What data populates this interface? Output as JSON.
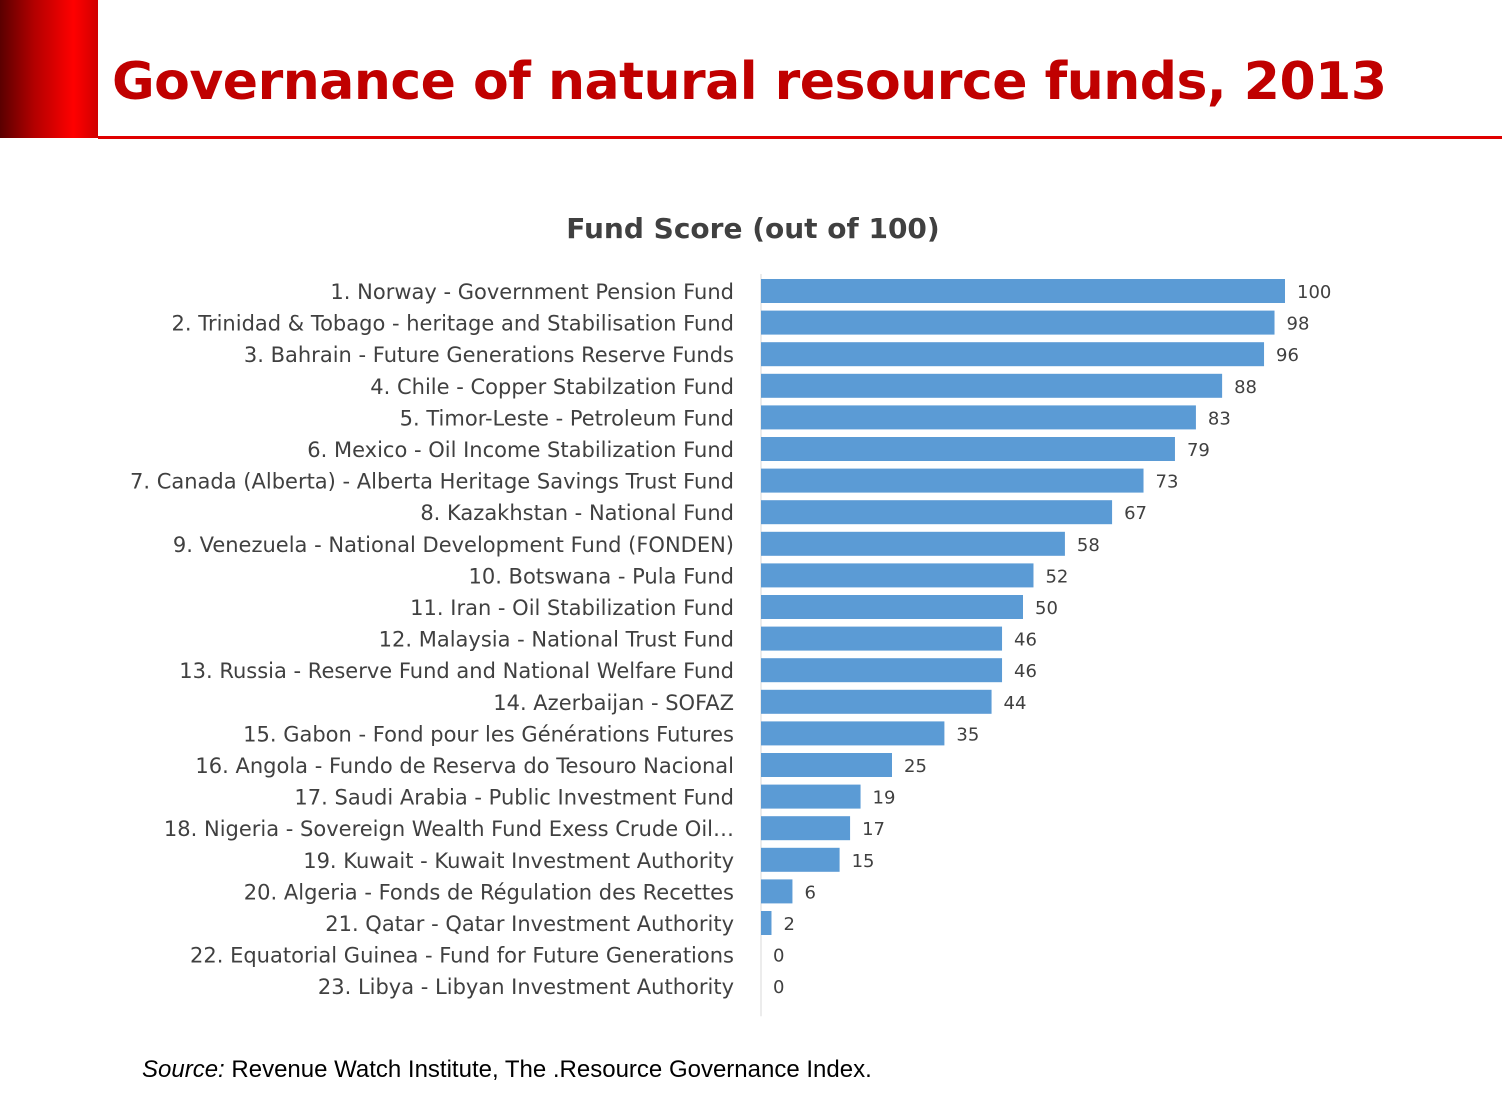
{
  "slide": {
    "title": "Governance of natural resource funds, 2013"
  },
  "colors": {
    "accent": "#c00000",
    "bar": "#5b9bd5",
    "text": "#404040"
  },
  "source": {
    "label": "Source:",
    "text": " Revenue Watch Institute, The .Resource Governance Index."
  },
  "chart_data": {
    "type": "bar",
    "orientation": "horizontal",
    "title": "Fund Score (out of 100)",
    "xlabel": "",
    "ylabel": "",
    "xlim": [
      0,
      100
    ],
    "grid": false,
    "legend": "none",
    "categories": [
      "1. Norway - Government Pension Fund",
      "2. Trinidad & Tobago - heritage and Stabilisation Fund",
      "3. Bahrain - Future Generations Reserve Funds",
      "4. Chile - Copper Stabilzation Fund",
      "5. Timor-Leste - Petroleum Fund",
      "6. Mexico - Oil Income Stabilization Fund",
      "7. Canada (Alberta) - Alberta Heritage Savings Trust Fund",
      "8. Kazakhstan - National Fund",
      "9. Venezuela - National Development Fund (FONDEN)",
      "10. Botswana - Pula Fund",
      "11. Iran - Oil Stabilization Fund",
      "12. Malaysia - National Trust Fund",
      "13. Russia - Reserve Fund and National Welfare Fund",
      "14. Azerbaijan - SOFAZ",
      "15. Gabon - Fond pour les Générations Futures",
      "16. Angola - Fundo de Reserva do Tesouro Nacional",
      "17. Saudi Arabia - Public Investment Fund",
      "18. Nigeria - Sovereign Wealth Fund Exess Crude Oil…",
      "19. Kuwait - Kuwait Investment Authority",
      "20. Algeria - Fonds de Régulation des Recettes",
      "21. Qatar - Qatar Investment Authority",
      "22. Equatorial Guinea - Fund for Future Generations",
      "23. Libya - Libyan Investment Authority"
    ],
    "values": [
      100,
      98,
      96,
      88,
      83,
      79,
      73,
      67,
      58,
      52,
      50,
      46,
      46,
      44,
      35,
      25,
      19,
      17,
      15,
      6,
      2,
      0,
      0
    ],
    "data_labels": [
      "100",
      "98",
      "96",
      "88",
      "83",
      "79",
      "73",
      "67",
      "58",
      "52",
      "50",
      "46",
      "46",
      "44",
      "35",
      "25",
      "19",
      "17",
      "15",
      "6",
      "2",
      "0",
      "0"
    ]
  }
}
